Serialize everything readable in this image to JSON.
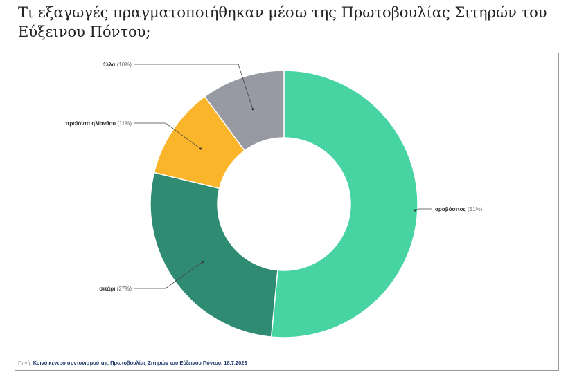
{
  "title": "Τι εξαγωγές πραγματοποιήθηκαν μέσω της Πρωτοβουλίας Σιτηρών του Εύξεινου Πόντου;",
  "source": {
    "label": "Πηγή:",
    "text": "Κοινό κέντρο συντονισμού της Πρωτοβουλίας Σιτηρών του Εύξεινου Πόντου, 18.7.2023"
  },
  "chart_data": {
    "type": "pie",
    "donut": true,
    "title": "Τι εξαγωγές πραγματοποιήθηκαν μέσω της Πρωτοβουλίας Σιτηρών του Εύξεινου Πόντου;",
    "slices": [
      {
        "label": "αραβόσιτος",
        "value": 51,
        "pct": "(51%)",
        "color": "#48d3a2"
      },
      {
        "label": "σιτάρι",
        "value": 27,
        "pct": "(27%)",
        "color": "#2f8c73"
      },
      {
        "label": "προϊόντα ηλίανθου",
        "value": 11,
        "pct": "(11%)",
        "color": "#fbb52a"
      },
      {
        "label": "άλλα",
        "value": 10,
        "pct": "(10%)",
        "color": "#979aa3"
      }
    ]
  }
}
